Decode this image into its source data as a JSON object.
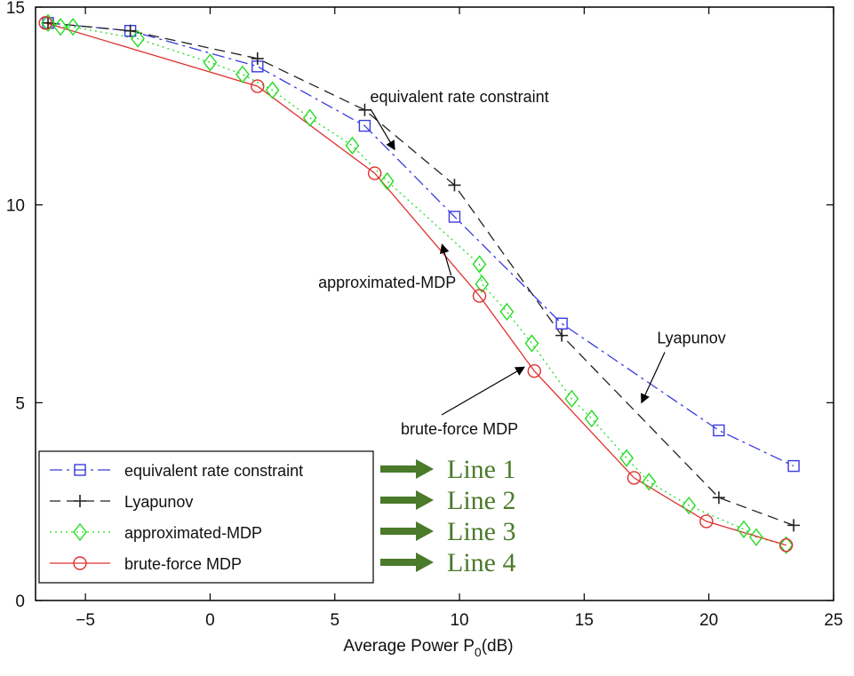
{
  "chart_data": {
    "type": "line",
    "title": "",
    "xlabel": "Average Power P",
    "xlabel_sub": "0",
    "xlabel_unit": "(dB)",
    "ylabel": "",
    "xlim": [
      -7,
      25
    ],
    "ylim": [
      0,
      15
    ],
    "xticks": [
      "-5",
      "0",
      "5",
      "10",
      "15",
      "20",
      "25"
    ],
    "yticks": [
      "0",
      "5",
      "10",
      "15"
    ],
    "grid": false,
    "legend_position": "bottom-left",
    "series": [
      {
        "name": "equivalent rate constraint",
        "color": "#3a3adf",
        "marker": "square",
        "dash": "dash-dot",
        "points": [
          [
            -6.5,
            14.6
          ],
          [
            -3.2,
            14.4
          ],
          [
            1.9,
            13.5
          ],
          [
            6.2,
            12.0
          ],
          [
            9.8,
            9.7
          ],
          [
            14.1,
            7.0
          ],
          [
            20.4,
            4.3
          ],
          [
            23.4,
            3.4
          ]
        ]
      },
      {
        "name": "Lyapunov",
        "color": "#222222",
        "marker": "plus",
        "dash": "dashed",
        "points": [
          [
            -6.5,
            14.6
          ],
          [
            -3.2,
            14.4
          ],
          [
            1.9,
            13.7
          ],
          [
            6.2,
            12.4
          ],
          [
            9.8,
            10.5
          ],
          [
            14.1,
            6.7
          ],
          [
            20.4,
            2.6
          ],
          [
            23.4,
            1.9
          ]
        ]
      },
      {
        "name": "approximated-MDP",
        "color": "#22dd22",
        "marker": "diamond",
        "dash": "dotted",
        "points": [
          [
            -6.5,
            14.6
          ],
          [
            -6.0,
            14.5
          ],
          [
            -5.5,
            14.5
          ],
          [
            -2.9,
            14.2
          ],
          [
            0.0,
            13.6
          ],
          [
            1.3,
            13.3
          ],
          [
            2.5,
            12.9
          ],
          [
            4.0,
            12.2
          ],
          [
            5.7,
            11.5
          ],
          [
            7.1,
            10.6
          ],
          [
            10.8,
            8.5
          ],
          [
            10.9,
            8.0
          ],
          [
            11.9,
            7.3
          ],
          [
            12.9,
            6.5
          ],
          [
            14.5,
            5.1
          ],
          [
            15.3,
            4.6
          ],
          [
            16.7,
            3.6
          ],
          [
            17.6,
            3.0
          ],
          [
            19.2,
            2.4
          ],
          [
            21.4,
            1.8
          ],
          [
            21.9,
            1.6
          ],
          [
            23.1,
            1.4
          ]
        ]
      },
      {
        "name": "brute-force MDP",
        "color": "#e03030",
        "marker": "circle",
        "dash": "solid",
        "points": [
          [
            -6.6,
            14.6
          ],
          [
            1.9,
            13.0
          ],
          [
            6.6,
            10.8
          ],
          [
            10.8,
            7.7
          ],
          [
            13.0,
            5.8
          ],
          [
            17.0,
            3.1
          ],
          [
            19.9,
            2.0
          ],
          [
            23.1,
            1.4
          ]
        ]
      }
    ],
    "annotations": [
      {
        "text": "equivalent rate constraint",
        "x": 10.0,
        "y": 12.6,
        "target_x": 7.4,
        "target_y": 11.4
      },
      {
        "text": "approximated-MDP",
        "x": 7.1,
        "y": 7.9,
        "target_x": 9.3,
        "target_y": 9.0
      },
      {
        "text": "brute-force MDP",
        "x": 10.0,
        "y": 4.2,
        "target_x": 12.6,
        "target_y": 5.9
      },
      {
        "text": "Lyapunov",
        "x": 19.3,
        "y": 6.5,
        "target_x": 17.3,
        "target_y": 5.0
      }
    ],
    "side_labels": [
      "Line 1",
      "Line 2",
      "Line 3",
      "Line 4"
    ],
    "side_arrow_color": "#4a7a2a"
  }
}
